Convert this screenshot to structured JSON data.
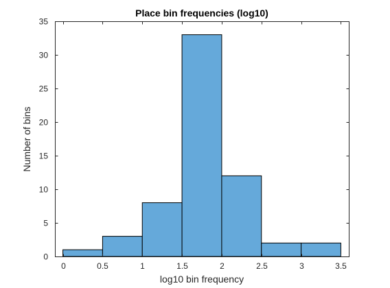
{
  "chart_data": {
    "type": "bar",
    "title": "Place bin frequencies (log10)",
    "xlabel": "log10 bin frequency",
    "ylabel": "Number of bins",
    "bin_edges": [
      0,
      0.5,
      1,
      1.5,
      2,
      2.5,
      3,
      3.5
    ],
    "values": [
      1,
      3,
      8,
      33,
      12,
      2,
      2
    ],
    "xlim": [
      -0.1,
      3.6
    ],
    "ylim": [
      0,
      35
    ],
    "xticks": [
      0,
      0.5,
      1,
      1.5,
      2,
      2.5,
      3,
      3.5
    ],
    "xtick_labels": [
      "0",
      "0.5",
      "1",
      "1.5",
      "2",
      "2.5",
      "3",
      "3.5"
    ],
    "yticks": [
      0,
      5,
      10,
      15,
      20,
      25,
      30,
      35
    ],
    "ytick_labels": [
      "0",
      "5",
      "10",
      "15",
      "20",
      "25",
      "30",
      "35"
    ],
    "grid": false,
    "legend": "none",
    "bar_color": "#65a9da",
    "bar_edge_color": "#000000",
    "axis_color": "#262626"
  }
}
